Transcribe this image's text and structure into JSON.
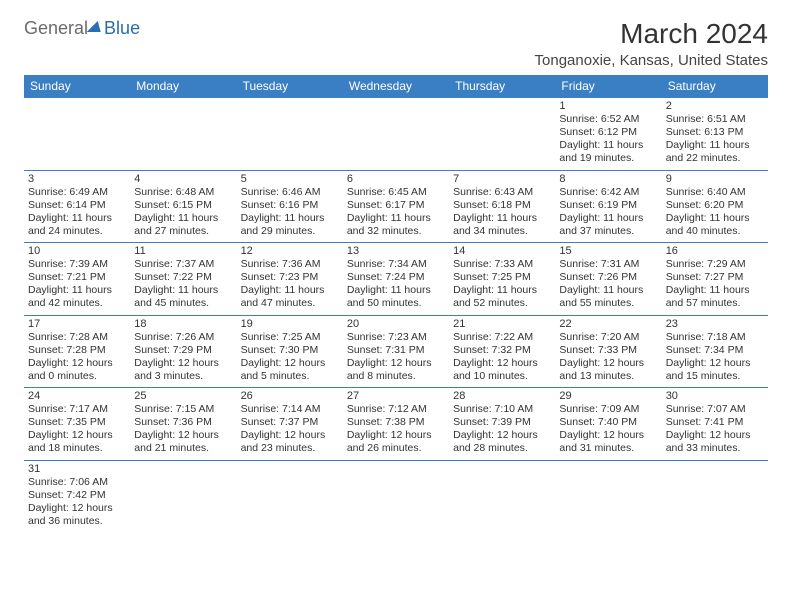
{
  "logo": {
    "gray": "General",
    "blue": "Blue"
  },
  "title": "March 2024",
  "location": "Tonganoxie, Kansas, United States",
  "colors": {
    "header_bg": "#3a7fc4",
    "header_fg": "#ffffff",
    "logo_blue": "#2a6db0",
    "logo_gray": "#6b6b6b",
    "cell_border": "#3a7fc4",
    "text": "#333333",
    "background": "#ffffff"
  },
  "typography": {
    "month_title_fontsize": 28,
    "location_fontsize": 15,
    "header_fontsize": 12,
    "cell_fontsize": 10.5,
    "font_family": "Arial"
  },
  "dayNames": [
    "Sunday",
    "Monday",
    "Tuesday",
    "Wednesday",
    "Thursday",
    "Friday",
    "Saturday"
  ],
  "weeks": [
    [
      null,
      null,
      null,
      null,
      null,
      {
        "n": "1",
        "sr": "Sunrise: 6:52 AM",
        "ss": "Sunset: 6:12 PM",
        "d1": "Daylight: 11 hours",
        "d2": "and 19 minutes."
      },
      {
        "n": "2",
        "sr": "Sunrise: 6:51 AM",
        "ss": "Sunset: 6:13 PM",
        "d1": "Daylight: 11 hours",
        "d2": "and 22 minutes."
      }
    ],
    [
      {
        "n": "3",
        "sr": "Sunrise: 6:49 AM",
        "ss": "Sunset: 6:14 PM",
        "d1": "Daylight: 11 hours",
        "d2": "and 24 minutes."
      },
      {
        "n": "4",
        "sr": "Sunrise: 6:48 AM",
        "ss": "Sunset: 6:15 PM",
        "d1": "Daylight: 11 hours",
        "d2": "and 27 minutes."
      },
      {
        "n": "5",
        "sr": "Sunrise: 6:46 AM",
        "ss": "Sunset: 6:16 PM",
        "d1": "Daylight: 11 hours",
        "d2": "and 29 minutes."
      },
      {
        "n": "6",
        "sr": "Sunrise: 6:45 AM",
        "ss": "Sunset: 6:17 PM",
        "d1": "Daylight: 11 hours",
        "d2": "and 32 minutes."
      },
      {
        "n": "7",
        "sr": "Sunrise: 6:43 AM",
        "ss": "Sunset: 6:18 PM",
        "d1": "Daylight: 11 hours",
        "d2": "and 34 minutes."
      },
      {
        "n": "8",
        "sr": "Sunrise: 6:42 AM",
        "ss": "Sunset: 6:19 PM",
        "d1": "Daylight: 11 hours",
        "d2": "and 37 minutes."
      },
      {
        "n": "9",
        "sr": "Sunrise: 6:40 AM",
        "ss": "Sunset: 6:20 PM",
        "d1": "Daylight: 11 hours",
        "d2": "and 40 minutes."
      }
    ],
    [
      {
        "n": "10",
        "sr": "Sunrise: 7:39 AM",
        "ss": "Sunset: 7:21 PM",
        "d1": "Daylight: 11 hours",
        "d2": "and 42 minutes."
      },
      {
        "n": "11",
        "sr": "Sunrise: 7:37 AM",
        "ss": "Sunset: 7:22 PM",
        "d1": "Daylight: 11 hours",
        "d2": "and 45 minutes."
      },
      {
        "n": "12",
        "sr": "Sunrise: 7:36 AM",
        "ss": "Sunset: 7:23 PM",
        "d1": "Daylight: 11 hours",
        "d2": "and 47 minutes."
      },
      {
        "n": "13",
        "sr": "Sunrise: 7:34 AM",
        "ss": "Sunset: 7:24 PM",
        "d1": "Daylight: 11 hours",
        "d2": "and 50 minutes."
      },
      {
        "n": "14",
        "sr": "Sunrise: 7:33 AM",
        "ss": "Sunset: 7:25 PM",
        "d1": "Daylight: 11 hours",
        "d2": "and 52 minutes."
      },
      {
        "n": "15",
        "sr": "Sunrise: 7:31 AM",
        "ss": "Sunset: 7:26 PM",
        "d1": "Daylight: 11 hours",
        "d2": "and 55 minutes."
      },
      {
        "n": "16",
        "sr": "Sunrise: 7:29 AM",
        "ss": "Sunset: 7:27 PM",
        "d1": "Daylight: 11 hours",
        "d2": "and 57 minutes."
      }
    ],
    [
      {
        "n": "17",
        "sr": "Sunrise: 7:28 AM",
        "ss": "Sunset: 7:28 PM",
        "d1": "Daylight: 12 hours",
        "d2": "and 0 minutes."
      },
      {
        "n": "18",
        "sr": "Sunrise: 7:26 AM",
        "ss": "Sunset: 7:29 PM",
        "d1": "Daylight: 12 hours",
        "d2": "and 3 minutes."
      },
      {
        "n": "19",
        "sr": "Sunrise: 7:25 AM",
        "ss": "Sunset: 7:30 PM",
        "d1": "Daylight: 12 hours",
        "d2": "and 5 minutes."
      },
      {
        "n": "20",
        "sr": "Sunrise: 7:23 AM",
        "ss": "Sunset: 7:31 PM",
        "d1": "Daylight: 12 hours",
        "d2": "and 8 minutes."
      },
      {
        "n": "21",
        "sr": "Sunrise: 7:22 AM",
        "ss": "Sunset: 7:32 PM",
        "d1": "Daylight: 12 hours",
        "d2": "and 10 minutes."
      },
      {
        "n": "22",
        "sr": "Sunrise: 7:20 AM",
        "ss": "Sunset: 7:33 PM",
        "d1": "Daylight: 12 hours",
        "d2": "and 13 minutes."
      },
      {
        "n": "23",
        "sr": "Sunrise: 7:18 AM",
        "ss": "Sunset: 7:34 PM",
        "d1": "Daylight: 12 hours",
        "d2": "and 15 minutes."
      }
    ],
    [
      {
        "n": "24",
        "sr": "Sunrise: 7:17 AM",
        "ss": "Sunset: 7:35 PM",
        "d1": "Daylight: 12 hours",
        "d2": "and 18 minutes."
      },
      {
        "n": "25",
        "sr": "Sunrise: 7:15 AM",
        "ss": "Sunset: 7:36 PM",
        "d1": "Daylight: 12 hours",
        "d2": "and 21 minutes."
      },
      {
        "n": "26",
        "sr": "Sunrise: 7:14 AM",
        "ss": "Sunset: 7:37 PM",
        "d1": "Daylight: 12 hours",
        "d2": "and 23 minutes."
      },
      {
        "n": "27",
        "sr": "Sunrise: 7:12 AM",
        "ss": "Sunset: 7:38 PM",
        "d1": "Daylight: 12 hours",
        "d2": "and 26 minutes."
      },
      {
        "n": "28",
        "sr": "Sunrise: 7:10 AM",
        "ss": "Sunset: 7:39 PM",
        "d1": "Daylight: 12 hours",
        "d2": "and 28 minutes."
      },
      {
        "n": "29",
        "sr": "Sunrise: 7:09 AM",
        "ss": "Sunset: 7:40 PM",
        "d1": "Daylight: 12 hours",
        "d2": "and 31 minutes."
      },
      {
        "n": "30",
        "sr": "Sunrise: 7:07 AM",
        "ss": "Sunset: 7:41 PM",
        "d1": "Daylight: 12 hours",
        "d2": "and 33 minutes."
      }
    ],
    [
      {
        "n": "31",
        "sr": "Sunrise: 7:06 AM",
        "ss": "Sunset: 7:42 PM",
        "d1": "Daylight: 12 hours",
        "d2": "and 36 minutes."
      },
      null,
      null,
      null,
      null,
      null,
      null
    ]
  ]
}
